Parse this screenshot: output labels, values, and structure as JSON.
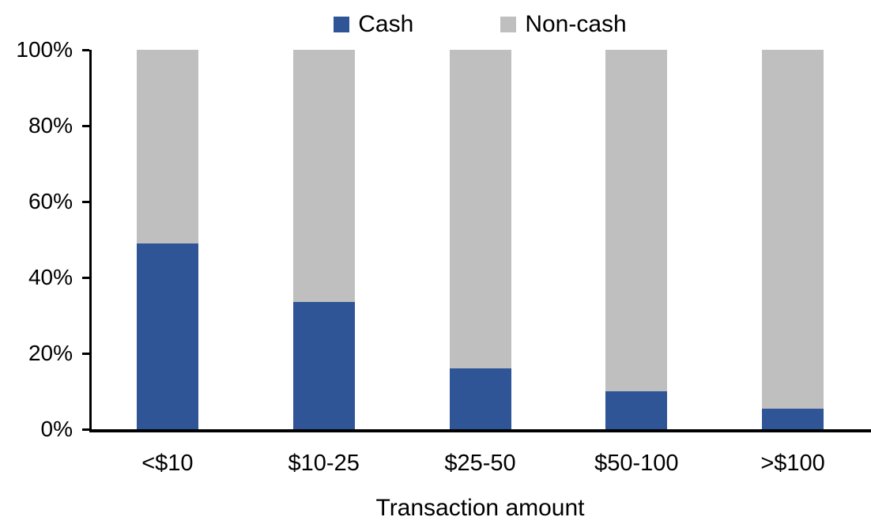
{
  "chart_data": {
    "type": "bar",
    "stacked": true,
    "percent_stacked": true,
    "title": "",
    "xlabel": "Transaction amount",
    "ylabel": "",
    "categories": [
      "<$10",
      "$10-25",
      "$25-50",
      "$50-100",
      ">$100"
    ],
    "series": [
      {
        "name": "Cash",
        "color": "#2F5597",
        "values": [
          49,
          33.5,
          16,
          10,
          5.5
        ]
      },
      {
        "name": "Non-cash",
        "color": "#BFBFBF",
        "values": [
          51,
          66.5,
          84,
          90,
          94.5
        ]
      }
    ],
    "ylim": [
      0,
      100
    ],
    "yticks": [
      "0%",
      "20%",
      "40%",
      "60%",
      "80%",
      "100%"
    ],
    "ytick_values": [
      0,
      20,
      40,
      60,
      80,
      100
    ],
    "legend_position": "top",
    "grid": false,
    "axis_color": "#000000",
    "text_color": "#000000",
    "background_color": "#FFFFFF"
  }
}
